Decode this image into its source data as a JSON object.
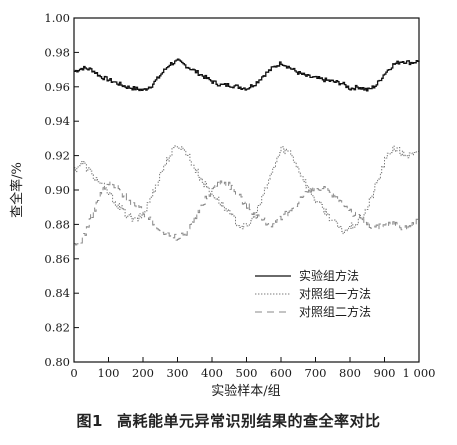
{
  "chart_data": {
    "type": "line",
    "xlabel": "实验样本/组",
    "ylabel": "查全率/%",
    "xlim": [
      0,
      1000
    ],
    "ylim": [
      0.8,
      1.0
    ],
    "x_ticks": [
      0,
      100,
      200,
      300,
      400,
      500,
      600,
      700,
      800,
      900,
      1000
    ],
    "x_tick_labels": [
      "0",
      "100",
      "200",
      "300",
      "400",
      "500",
      "600",
      "700",
      "800",
      "900",
      "1 000"
    ],
    "y_ticks": [
      0.8,
      0.82,
      0.84,
      0.86,
      0.88,
      0.9,
      0.92,
      0.94,
      0.96,
      0.98,
      1.0
    ],
    "y_tick_labels": [
      "0.80",
      "0.82",
      "0.84",
      "0.86",
      "0.88",
      "0.90",
      "0.92",
      "0.94",
      "0.96",
      "0.98",
      "1.00"
    ],
    "grid": false,
    "legend_position": "lower-right",
    "series": [
      {
        "name": "实验组方法",
        "style": "solid",
        "color": "#111111",
        "x": [
          0,
          25,
          50,
          75,
          100,
          125,
          150,
          175,
          200,
          225,
          250,
          275,
          300,
          325,
          350,
          375,
          400,
          425,
          450,
          475,
          500,
          525,
          550,
          575,
          600,
          625,
          650,
          675,
          700,
          725,
          750,
          775,
          800,
          825,
          850,
          875,
          900,
          925,
          950,
          975,
          1000
        ],
        "y": [
          0.969,
          0.971,
          0.97,
          0.966,
          0.964,
          0.962,
          0.96,
          0.959,
          0.958,
          0.961,
          0.967,
          0.973,
          0.975,
          0.972,
          0.969,
          0.966,
          0.963,
          0.961,
          0.961,
          0.96,
          0.959,
          0.962,
          0.967,
          0.971,
          0.974,
          0.971,
          0.968,
          0.966,
          0.965,
          0.964,
          0.963,
          0.962,
          0.959,
          0.96,
          0.958,
          0.961,
          0.968,
          0.973,
          0.975,
          0.974,
          0.975
        ]
      },
      {
        "name": "对照组一方法",
        "style": "dotted",
        "color": "#7a7a7a",
        "x": [
          0,
          25,
          50,
          75,
          100,
          125,
          150,
          175,
          200,
          225,
          250,
          275,
          300,
          325,
          350,
          375,
          400,
          425,
          450,
          475,
          500,
          525,
          550,
          575,
          600,
          625,
          650,
          675,
          700,
          725,
          750,
          775,
          800,
          825,
          850,
          875,
          900,
          925,
          950,
          975,
          1000
        ],
        "y": [
          0.912,
          0.916,
          0.909,
          0.904,
          0.898,
          0.891,
          0.886,
          0.882,
          0.886,
          0.897,
          0.91,
          0.92,
          0.926,
          0.922,
          0.912,
          0.904,
          0.898,
          0.892,
          0.886,
          0.88,
          0.878,
          0.886,
          0.898,
          0.912,
          0.924,
          0.922,
          0.912,
          0.902,
          0.894,
          0.888,
          0.882,
          0.876,
          0.878,
          0.882,
          0.89,
          0.903,
          0.917,
          0.925,
          0.921,
          0.92,
          0.921
        ]
      },
      {
        "name": "对照组二方法",
        "style": "dashed",
        "color": "#8a8a8a",
        "x": [
          0,
          25,
          50,
          75,
          100,
          125,
          150,
          175,
          200,
          225,
          250,
          275,
          300,
          325,
          350,
          375,
          400,
          425,
          450,
          475,
          500,
          525,
          550,
          575,
          600,
          625,
          650,
          675,
          700,
          725,
          750,
          775,
          800,
          825,
          850,
          875,
          900,
          925,
          950,
          975,
          1000
        ],
        "y": [
          0.867,
          0.872,
          0.885,
          0.897,
          0.904,
          0.901,
          0.896,
          0.891,
          0.887,
          0.881,
          0.878,
          0.873,
          0.872,
          0.876,
          0.884,
          0.893,
          0.901,
          0.905,
          0.903,
          0.897,
          0.891,
          0.886,
          0.882,
          0.88,
          0.883,
          0.888,
          0.894,
          0.899,
          0.901,
          0.9,
          0.897,
          0.893,
          0.888,
          0.884,
          0.88,
          0.878,
          0.879,
          0.881,
          0.878,
          0.879,
          0.882
        ]
      }
    ]
  },
  "caption": {
    "figure_number": "图1",
    "text": "高耗能单元异常识别结果的查全率对比"
  }
}
